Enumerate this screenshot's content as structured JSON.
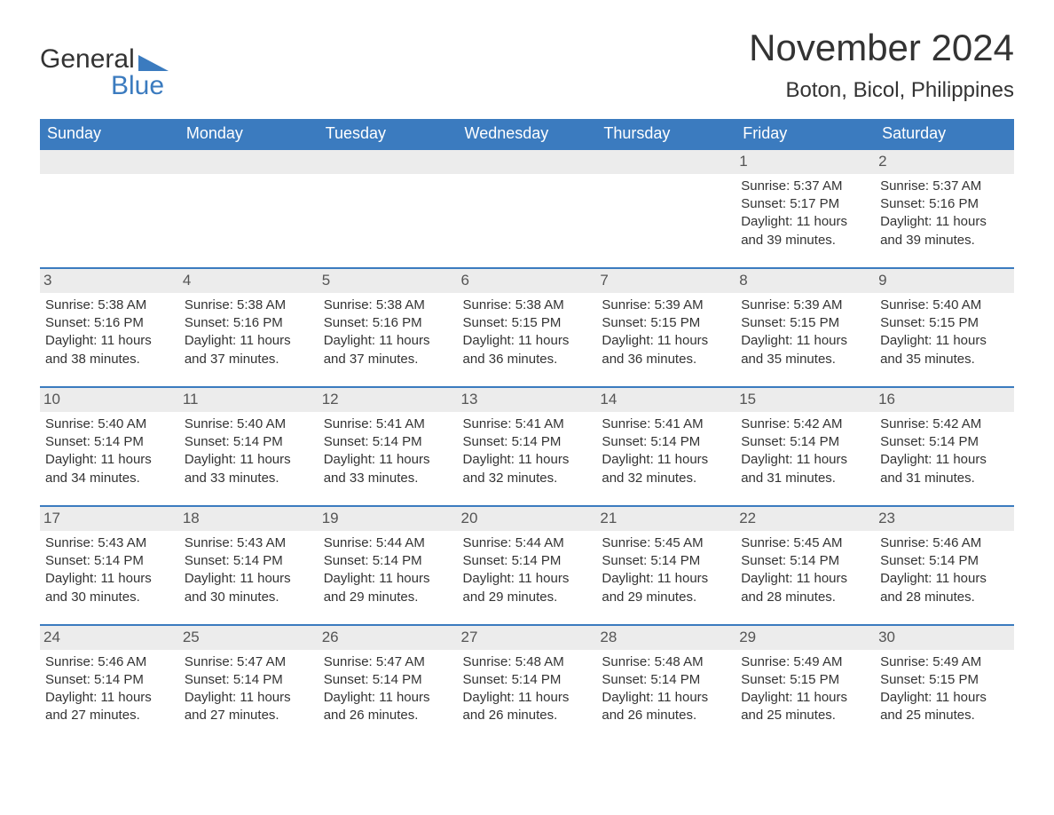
{
  "logo": {
    "word1": "General",
    "word2": "Blue"
  },
  "title": "November 2024",
  "location": "Boton, Bicol, Philippines",
  "colors": {
    "header_bg": "#3b7bbf",
    "header_text": "#ffffff",
    "daynum_bg": "#ececec",
    "text": "#333333",
    "logo_accent": "#3b7bbf"
  },
  "typography": {
    "title_fontsize": 42,
    "location_fontsize": 24,
    "dayheader_fontsize": 18,
    "cell_fontsize": 15
  },
  "day_names": [
    "Sunday",
    "Monday",
    "Tuesday",
    "Wednesday",
    "Thursday",
    "Friday",
    "Saturday"
  ],
  "weeks": [
    [
      {
        "day": "",
        "sunrise": "",
        "sunset": "",
        "daylight": ""
      },
      {
        "day": "",
        "sunrise": "",
        "sunset": "",
        "daylight": ""
      },
      {
        "day": "",
        "sunrise": "",
        "sunset": "",
        "daylight": ""
      },
      {
        "day": "",
        "sunrise": "",
        "sunset": "",
        "daylight": ""
      },
      {
        "day": "",
        "sunrise": "",
        "sunset": "",
        "daylight": ""
      },
      {
        "day": "1",
        "sunrise": "Sunrise: 5:37 AM",
        "sunset": "Sunset: 5:17 PM",
        "daylight": "Daylight: 11 hours and 39 minutes."
      },
      {
        "day": "2",
        "sunrise": "Sunrise: 5:37 AM",
        "sunset": "Sunset: 5:16 PM",
        "daylight": "Daylight: 11 hours and 39 minutes."
      }
    ],
    [
      {
        "day": "3",
        "sunrise": "Sunrise: 5:38 AM",
        "sunset": "Sunset: 5:16 PM",
        "daylight": "Daylight: 11 hours and 38 minutes."
      },
      {
        "day": "4",
        "sunrise": "Sunrise: 5:38 AM",
        "sunset": "Sunset: 5:16 PM",
        "daylight": "Daylight: 11 hours and 37 minutes."
      },
      {
        "day": "5",
        "sunrise": "Sunrise: 5:38 AM",
        "sunset": "Sunset: 5:16 PM",
        "daylight": "Daylight: 11 hours and 37 minutes."
      },
      {
        "day": "6",
        "sunrise": "Sunrise: 5:38 AM",
        "sunset": "Sunset: 5:15 PM",
        "daylight": "Daylight: 11 hours and 36 minutes."
      },
      {
        "day": "7",
        "sunrise": "Sunrise: 5:39 AM",
        "sunset": "Sunset: 5:15 PM",
        "daylight": "Daylight: 11 hours and 36 minutes."
      },
      {
        "day": "8",
        "sunrise": "Sunrise: 5:39 AM",
        "sunset": "Sunset: 5:15 PM",
        "daylight": "Daylight: 11 hours and 35 minutes."
      },
      {
        "day": "9",
        "sunrise": "Sunrise: 5:40 AM",
        "sunset": "Sunset: 5:15 PM",
        "daylight": "Daylight: 11 hours and 35 minutes."
      }
    ],
    [
      {
        "day": "10",
        "sunrise": "Sunrise: 5:40 AM",
        "sunset": "Sunset: 5:14 PM",
        "daylight": "Daylight: 11 hours and 34 minutes."
      },
      {
        "day": "11",
        "sunrise": "Sunrise: 5:40 AM",
        "sunset": "Sunset: 5:14 PM",
        "daylight": "Daylight: 11 hours and 33 minutes."
      },
      {
        "day": "12",
        "sunrise": "Sunrise: 5:41 AM",
        "sunset": "Sunset: 5:14 PM",
        "daylight": "Daylight: 11 hours and 33 minutes."
      },
      {
        "day": "13",
        "sunrise": "Sunrise: 5:41 AM",
        "sunset": "Sunset: 5:14 PM",
        "daylight": "Daylight: 11 hours and 32 minutes."
      },
      {
        "day": "14",
        "sunrise": "Sunrise: 5:41 AM",
        "sunset": "Sunset: 5:14 PM",
        "daylight": "Daylight: 11 hours and 32 minutes."
      },
      {
        "day": "15",
        "sunrise": "Sunrise: 5:42 AM",
        "sunset": "Sunset: 5:14 PM",
        "daylight": "Daylight: 11 hours and 31 minutes."
      },
      {
        "day": "16",
        "sunrise": "Sunrise: 5:42 AM",
        "sunset": "Sunset: 5:14 PM",
        "daylight": "Daylight: 11 hours and 31 minutes."
      }
    ],
    [
      {
        "day": "17",
        "sunrise": "Sunrise: 5:43 AM",
        "sunset": "Sunset: 5:14 PM",
        "daylight": "Daylight: 11 hours and 30 minutes."
      },
      {
        "day": "18",
        "sunrise": "Sunrise: 5:43 AM",
        "sunset": "Sunset: 5:14 PM",
        "daylight": "Daylight: 11 hours and 30 minutes."
      },
      {
        "day": "19",
        "sunrise": "Sunrise: 5:44 AM",
        "sunset": "Sunset: 5:14 PM",
        "daylight": "Daylight: 11 hours and 29 minutes."
      },
      {
        "day": "20",
        "sunrise": "Sunrise: 5:44 AM",
        "sunset": "Sunset: 5:14 PM",
        "daylight": "Daylight: 11 hours and 29 minutes."
      },
      {
        "day": "21",
        "sunrise": "Sunrise: 5:45 AM",
        "sunset": "Sunset: 5:14 PM",
        "daylight": "Daylight: 11 hours and 29 minutes."
      },
      {
        "day": "22",
        "sunrise": "Sunrise: 5:45 AM",
        "sunset": "Sunset: 5:14 PM",
        "daylight": "Daylight: 11 hours and 28 minutes."
      },
      {
        "day": "23",
        "sunrise": "Sunrise: 5:46 AM",
        "sunset": "Sunset: 5:14 PM",
        "daylight": "Daylight: 11 hours and 28 minutes."
      }
    ],
    [
      {
        "day": "24",
        "sunrise": "Sunrise: 5:46 AM",
        "sunset": "Sunset: 5:14 PM",
        "daylight": "Daylight: 11 hours and 27 minutes."
      },
      {
        "day": "25",
        "sunrise": "Sunrise: 5:47 AM",
        "sunset": "Sunset: 5:14 PM",
        "daylight": "Daylight: 11 hours and 27 minutes."
      },
      {
        "day": "26",
        "sunrise": "Sunrise: 5:47 AM",
        "sunset": "Sunset: 5:14 PM",
        "daylight": "Daylight: 11 hours and 26 minutes."
      },
      {
        "day": "27",
        "sunrise": "Sunrise: 5:48 AM",
        "sunset": "Sunset: 5:14 PM",
        "daylight": "Daylight: 11 hours and 26 minutes."
      },
      {
        "day": "28",
        "sunrise": "Sunrise: 5:48 AM",
        "sunset": "Sunset: 5:14 PM",
        "daylight": "Daylight: 11 hours and 26 minutes."
      },
      {
        "day": "29",
        "sunrise": "Sunrise: 5:49 AM",
        "sunset": "Sunset: 5:15 PM",
        "daylight": "Daylight: 11 hours and 25 minutes."
      },
      {
        "day": "30",
        "sunrise": "Sunrise: 5:49 AM",
        "sunset": "Sunset: 5:15 PM",
        "daylight": "Daylight: 11 hours and 25 minutes."
      }
    ]
  ]
}
